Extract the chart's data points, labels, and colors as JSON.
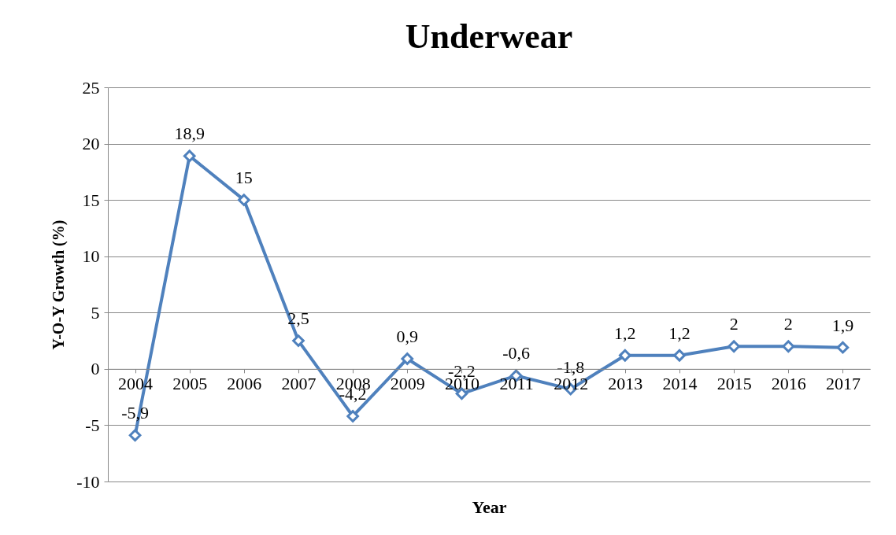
{
  "chart_data": {
    "type": "line",
    "title": "Underwear",
    "xlabel": "Year",
    "ylabel": "Y-O-Y Growth (%)",
    "categories": [
      "2004",
      "2005",
      "2006",
      "2007",
      "2008",
      "2009",
      "2010",
      "2011",
      "2012",
      "2013",
      "2014",
      "2015",
      "2016",
      "2017"
    ],
    "series": [
      {
        "color": "#4f81bd",
        "values": [
          -5.9,
          18.9,
          15,
          2.5,
          -4.2,
          0.9,
          -2.2,
          -0.6,
          -1.8,
          1.2,
          1.2,
          2,
          2,
          1.9
        ],
        "value_labels": [
          "-5,9",
          "18,9",
          "15",
          "2,5",
          "-4,2",
          "0,9",
          "-2,2",
          "-0,6",
          "-1,8",
          "1,2",
          "1,2",
          "2",
          "2",
          "1,9"
        ]
      }
    ],
    "ylim": [
      -10,
      25
    ],
    "yticks": [
      -10,
      -5,
      0,
      5,
      10,
      15,
      20,
      25
    ],
    "grid": "y",
    "marker": "diamond",
    "line_style": "solid"
  }
}
